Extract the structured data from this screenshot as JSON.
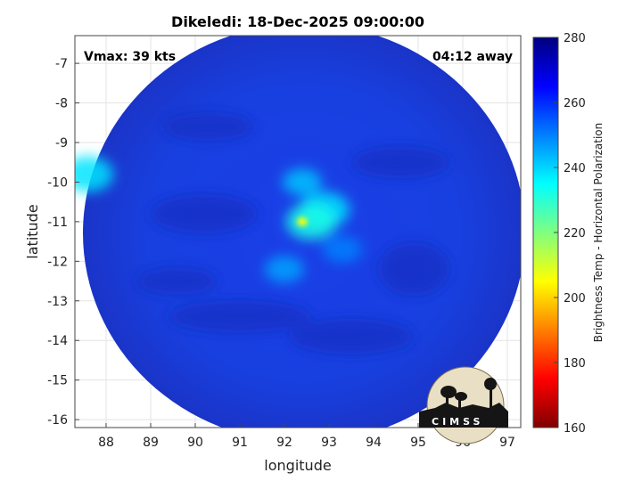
{
  "chart_data": {
    "type": "heatmap",
    "title": "Dikeledi: 18-Dec-2025 09:00:00",
    "xlabel": "longitude",
    "ylabel": "latitude",
    "xlim": [
      87.3,
      97.3
    ],
    "ylim": [
      -16.2,
      -6.3
    ],
    "xticks": [
      88,
      89,
      90,
      91,
      92,
      93,
      94,
      95,
      96,
      97
    ],
    "yticks": [
      -7,
      -8,
      -9,
      -10,
      -11,
      -12,
      -13,
      -14,
      -15,
      -16
    ],
    "grid": true,
    "annotations": {
      "vmax": "Vmax: 39 kts",
      "away": "04:12 away"
    },
    "colorbar": {
      "label": "Brightness Temp - Horizontal Polarization",
      "range": [
        160,
        280
      ],
      "ticks": [
        160,
        180,
        200,
        220,
        240,
        260,
        280
      ],
      "colors": [
        "#800000",
        "#ff0000",
        "#ffff00",
        "#00ffff",
        "#0060ff",
        "#00007f"
      ]
    },
    "field": {
      "center": [
        92.2,
        -11.2
      ],
      "background_value": 265,
      "features": [
        {
          "lon": 92.9,
          "lat": -10.7,
          "value": 238
        },
        {
          "lon": 92.6,
          "lat": -11.0,
          "value": 232
        },
        {
          "lon": 92.4,
          "lat": -10.0,
          "value": 242
        },
        {
          "lon": 92.0,
          "lat": -12.2,
          "value": 246
        },
        {
          "lon": 93.3,
          "lat": -11.7,
          "value": 250
        },
        {
          "lon": 92.4,
          "lat": -11.0,
          "value": 205
        },
        {
          "lon": 87.6,
          "lat": -9.8,
          "value": 238
        }
      ]
    },
    "logo_text": "CIMSS"
  }
}
